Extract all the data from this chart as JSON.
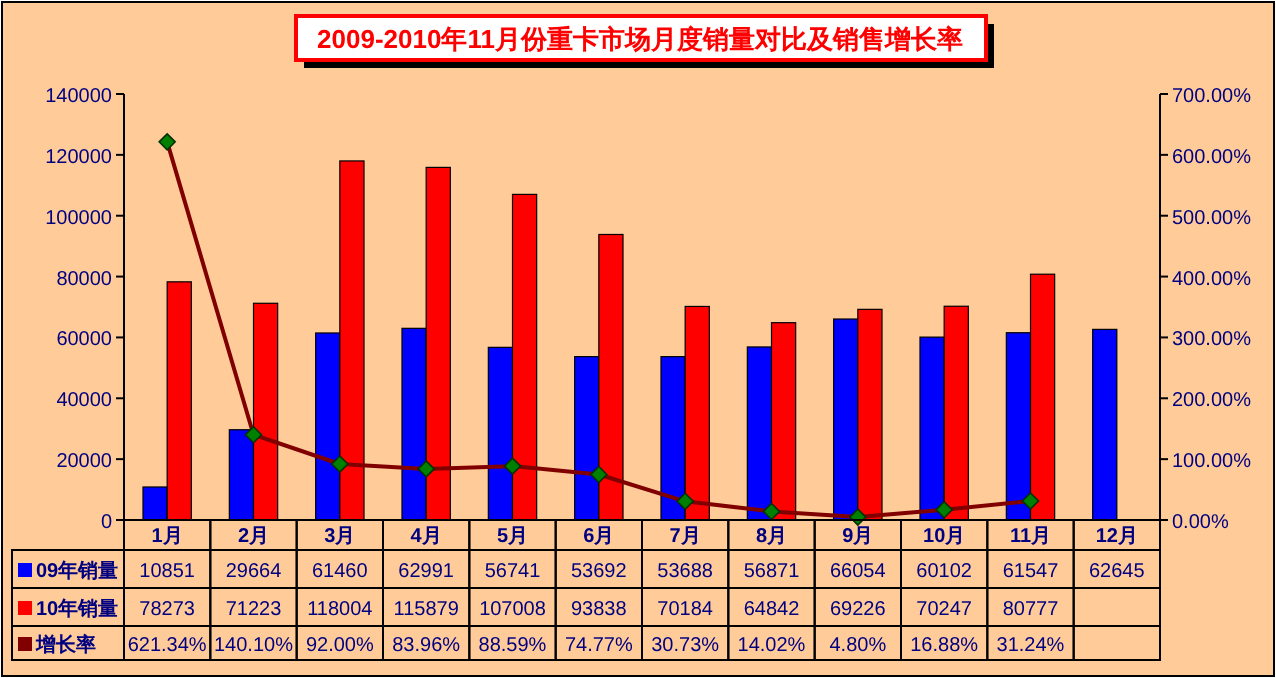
{
  "chart_data": {
    "type": "bar",
    "title": "2009-2010年11月份重卡市场月度销量对比及销售增长率",
    "categories": [
      "1月",
      "2月",
      "3月",
      "4月",
      "5月",
      "6月",
      "7月",
      "8月",
      "9月",
      "10月",
      "11月",
      "12月"
    ],
    "series": [
      {
        "name": "09年销量",
        "color": "#0000ff",
        "values": [
          10851,
          29664,
          61460,
          62991,
          56741,
          53692,
          53688,
          56871,
          66054,
          60102,
          61547,
          62645
        ]
      },
      {
        "name": "10年销量",
        "color": "#ff0000",
        "values": [
          78273,
          71223,
          118004,
          115879,
          107008,
          93838,
          70184,
          64842,
          69226,
          70247,
          80777,
          null
        ]
      },
      {
        "name": "增长率",
        "type": "line",
        "axis": "y2",
        "color": "#800000",
        "marker": "diamond",
        "values": [
          621.34,
          140.1,
          92.0,
          83.96,
          88.59,
          74.77,
          30.73,
          14.02,
          4.8,
          16.88,
          31.24,
          null
        ],
        "value_labels": [
          "621.34%",
          "140.10%",
          "92.00%",
          "83.96%",
          "88.59%",
          "74.77%",
          "30.73%",
          "14.02%",
          "4.80%",
          "16.88%",
          "31.24%",
          null
        ]
      }
    ],
    "ylim": [
      0,
      140000
    ],
    "yticks": [
      0,
      20000,
      40000,
      60000,
      80000,
      100000,
      120000,
      140000
    ],
    "y2lim": [
      0,
      700
    ],
    "y2ticks": [
      {
        "value": 0,
        "label": "0.00%"
      },
      {
        "value": 100,
        "label": "100.00%"
      },
      {
        "value": 200,
        "label": "200.00%"
      },
      {
        "value": 300,
        "label": "300.00%"
      },
      {
        "value": 400,
        "label": "400.00%"
      },
      {
        "value": 500,
        "label": "500.00%"
      },
      {
        "value": 600,
        "label": "600.00%"
      },
      {
        "value": 700,
        "label": "700.00%"
      }
    ],
    "data_labels": true,
    "legend": "bottom"
  }
}
